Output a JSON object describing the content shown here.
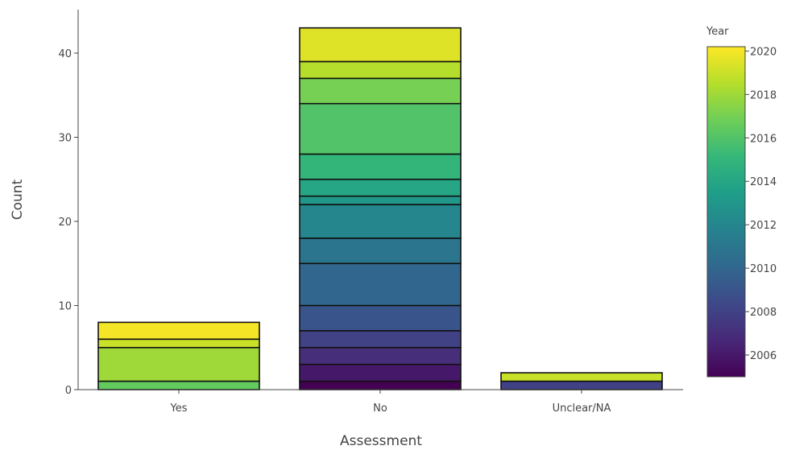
{
  "chart_data": {
    "type": "bar",
    "stacked": true,
    "xlabel": "Assessment",
    "ylabel": "Count",
    "categories": [
      "Yes",
      "No",
      "Unclear/NA"
    ],
    "ylim": [
      0,
      45
    ],
    "yticks": [
      0,
      10,
      20,
      30,
      40
    ],
    "grid": false,
    "stacks": [
      {
        "category": "Yes",
        "segments": [
          {
            "year": 2016.5,
            "count": 1
          },
          {
            "year": 2018,
            "count": 4
          },
          {
            "year": 2019,
            "count": 1
          },
          {
            "year": 2020,
            "count": 2
          }
        ]
      },
      {
        "category": "No",
        "segments": [
          {
            "year": 2005,
            "count": 1
          },
          {
            "year": 2006,
            "count": 2
          },
          {
            "year": 2007,
            "count": 2
          },
          {
            "year": 2008,
            "count": 2
          },
          {
            "year": 2009,
            "count": 3
          },
          {
            "year": 2010,
            "count": 5
          },
          {
            "year": 2011,
            "count": 3
          },
          {
            "year": 2012,
            "count": 4
          },
          {
            "year": 2013,
            "count": 1
          },
          {
            "year": 2014,
            "count": 2
          },
          {
            "year": 2015,
            "count": 3
          },
          {
            "year": 2016,
            "count": 6
          },
          {
            "year": 2017,
            "count": 3
          },
          {
            "year": 2018.5,
            "count": 2
          },
          {
            "year": 2019.5,
            "count": 4
          }
        ]
      },
      {
        "category": "Unclear/NA",
        "segments": [
          {
            "year": 2008,
            "count": 1
          },
          {
            "year": 2019,
            "count": 1
          }
        ]
      }
    ],
    "colorbar": {
      "title": "Year",
      "min": 2005,
      "max": 2020.2,
      "ticks": [
        2006,
        2008,
        2010,
        2012,
        2014,
        2016,
        2018,
        2020
      ],
      "colorscale": "viridis"
    }
  }
}
